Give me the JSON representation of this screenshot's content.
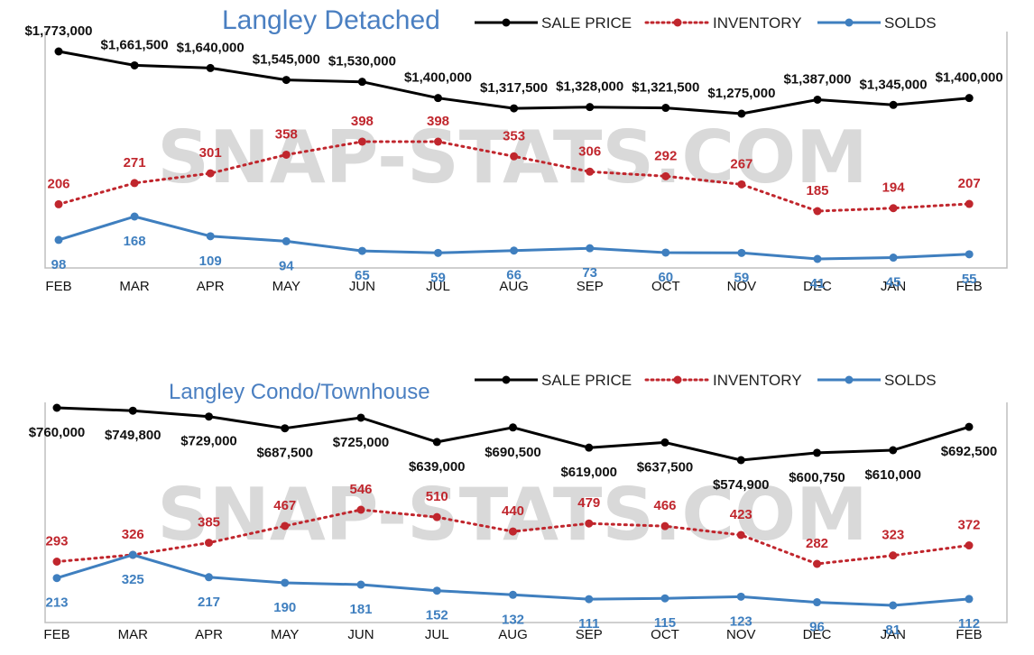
{
  "colors": {
    "sale_price": "#000000",
    "inventory": "#c0262d",
    "solds": "#3f7fbf",
    "title": "#4a7fc1",
    "watermark": "#d9d9d9",
    "frame": "#bfbfbf"
  },
  "watermark_text": "SNAP-STATS.COM",
  "chart_data": [
    {
      "type": "line",
      "title": "Langley Detached",
      "categories": [
        "FEB",
        "MAR",
        "APR",
        "MAY",
        "JUN",
        "JUL",
        "AUG",
        "SEP",
        "OCT",
        "NOV",
        "DEC",
        "JAN",
        "FEB"
      ],
      "legend": [
        "SALE PRICE",
        "INVENTORY",
        "SOLDS"
      ],
      "legend_position": "top-right",
      "grid": false,
      "series": [
        {
          "name": "SALE PRICE",
          "values": [
            1773000,
            1661500,
            1640000,
            1545000,
            1530000,
            1400000,
            1317500,
            1328000,
            1321500,
            1275000,
            1387000,
            1345000,
            1400000
          ],
          "labels": [
            "$1,773,000",
            "$1,661,500",
            "$1,640,000",
            "$1,545,000",
            "$1,530,000",
            "$1,400,000",
            "$1,317,500",
            "$1,328,000",
            "$1,321,500",
            "$1,275,000",
            "$1,387,000",
            "$1,345,000",
            "$1,400,000"
          ]
        },
        {
          "name": "INVENTORY",
          "values": [
            206,
            271,
            301,
            358,
            398,
            398,
            353,
            306,
            292,
            267,
            185,
            194,
            207
          ],
          "labels": [
            "206",
            "271",
            "301",
            "358",
            "398",
            "398",
            "353",
            "306",
            "292",
            "267",
            "185",
            "194",
            "207"
          ]
        },
        {
          "name": "SOLDS",
          "values": [
            98,
            168,
            109,
            94,
            65,
            59,
            66,
            73,
            60,
            59,
            41,
            45,
            55
          ],
          "labels": [
            "98",
            "168",
            "109",
            "94",
            "65",
            "59",
            "66",
            "73",
            "60",
            "59",
            "41",
            "45",
            "55"
          ]
        }
      ]
    },
    {
      "type": "line",
      "title": "Langley Condo/Townhouse",
      "categories": [
        "FEB",
        "MAR",
        "APR",
        "MAY",
        "JUN",
        "JUL",
        "AUG",
        "SEP",
        "OCT",
        "NOV",
        "DEC",
        "JAN",
        "FEB"
      ],
      "legend": [
        "SALE PRICE",
        "INVENTORY",
        "SOLDS"
      ],
      "legend_position": "top-right",
      "grid": false,
      "series": [
        {
          "name": "SALE PRICE",
          "values": [
            760000,
            749800,
            729000,
            687500,
            725000,
            639000,
            690500,
            619000,
            637500,
            574900,
            600750,
            610000,
            692500
          ],
          "labels": [
            "$760,000",
            "$749,800",
            "$729,000",
            "$687,500",
            "$725,000",
            "$639,000",
            "$690,500",
            "$619,000",
            "$637,500",
            "$574,900",
            "$600,750",
            "$610,000",
            "$692,500"
          ]
        },
        {
          "name": "INVENTORY",
          "values": [
            293,
            326,
            385,
            467,
            546,
            510,
            440,
            479,
            466,
            423,
            282,
            323,
            372
          ],
          "labels": [
            "293",
            "326",
            "385",
            "467",
            "546",
            "510",
            "440",
            "479",
            "466",
            "423",
            "282",
            "323",
            "372"
          ]
        },
        {
          "name": "SOLDS",
          "values": [
            213,
            325,
            217,
            190,
            181,
            152,
            132,
            111,
            115,
            123,
            96,
            81,
            112
          ],
          "labels": [
            "213",
            "325",
            "217",
            "190",
            "181",
            "152",
            "132",
            "111",
            "115",
            "123",
            "96",
            "81",
            "112"
          ]
        }
      ]
    }
  ]
}
